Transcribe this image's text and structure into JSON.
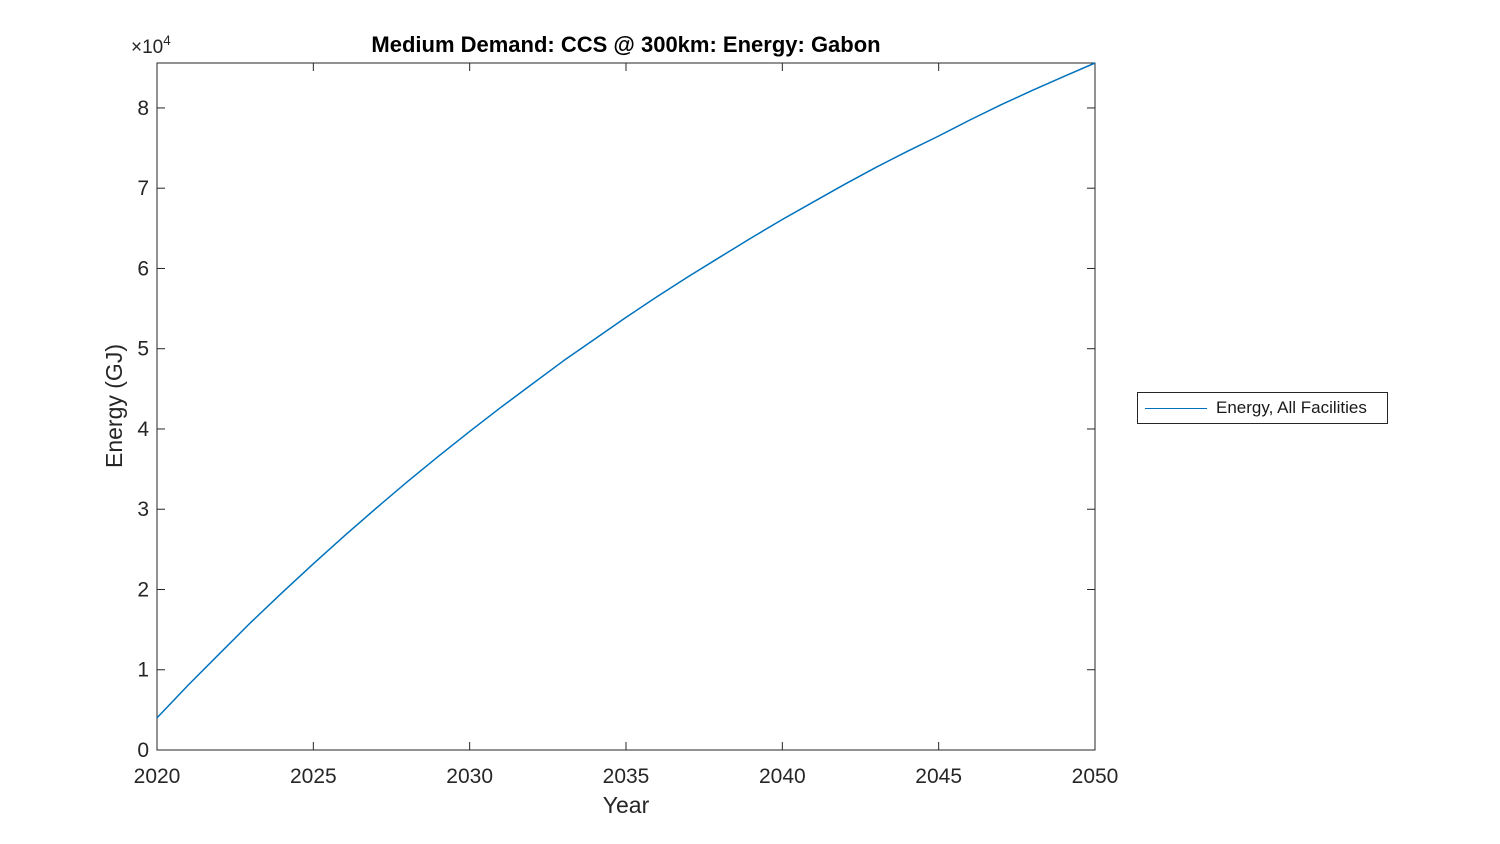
{
  "chart_data": {
    "type": "line",
    "title": "Medium Demand: CCS @ 300km: Energy: Gabon",
    "xlabel": "Year",
    "ylabel": "Energy (GJ)",
    "y_scale": {
      "base": "×10",
      "exponent": "4"
    },
    "grid": false,
    "box": true,
    "tick_direction": "in",
    "xlim": [
      2020,
      2050
    ],
    "ylim_e4": [
      0,
      8.56
    ],
    "x_ticks": [
      2020,
      2025,
      2030,
      2035,
      2040,
      2045,
      2050
    ],
    "y_ticks": [
      0,
      1,
      2,
      3,
      4,
      5,
      6,
      7,
      8
    ],
    "y_units_note": "values are in units of 10^4 GJ",
    "legend": {
      "position": "outside-right",
      "border_color": "#262626",
      "entries": [
        "Energy, All Facilities"
      ]
    },
    "series": [
      {
        "name": "Energy, All Facilities",
        "color": "#0072BD",
        "x": [
          2020,
          2021,
          2022,
          2023,
          2024,
          2025,
          2026,
          2027,
          2028,
          2029,
          2030,
          2031,
          2032,
          2033,
          2034,
          2035,
          2036,
          2037,
          2038,
          2039,
          2040,
          2041,
          2042,
          2043,
          2044,
          2045,
          2046,
          2047,
          2048,
          2049,
          2050
        ],
        "values_e4": [
          0.4,
          0.81,
          1.2,
          1.59,
          1.96,
          2.32,
          2.67,
          3.01,
          3.34,
          3.66,
          3.97,
          4.27,
          4.56,
          4.85,
          5.12,
          5.39,
          5.65,
          5.9,
          6.14,
          6.38,
          6.61,
          6.83,
          7.05,
          7.26,
          7.46,
          7.65,
          7.85,
          8.04,
          8.22,
          8.39,
          8.56
        ]
      }
    ]
  },
  "colors": {
    "background": "#ffffff",
    "axis": "#262626",
    "line": "#0072BD"
  }
}
